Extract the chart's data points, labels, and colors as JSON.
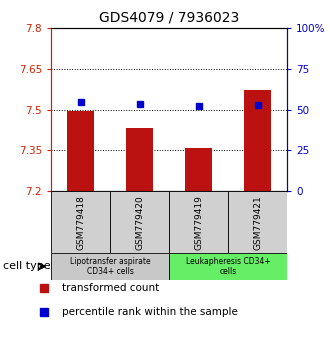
{
  "title": "GDS4079 / 7936023",
  "samples": [
    "GSM779418",
    "GSM779420",
    "GSM779419",
    "GSM779421"
  ],
  "bar_values": [
    7.497,
    7.432,
    7.358,
    7.572
  ],
  "percentile_values": [
    55.0,
    53.5,
    52.0,
    53.0
  ],
  "bar_color": "#bb1111",
  "percentile_color": "#0000cc",
  "left_ylim": [
    7.2,
    7.8
  ],
  "left_yticks": [
    7.2,
    7.35,
    7.5,
    7.65,
    7.8
  ],
  "right_ylim": [
    0,
    100
  ],
  "right_yticks": [
    0,
    25,
    50,
    75,
    100
  ],
  "right_yticklabels": [
    "0",
    "25",
    "50",
    "75",
    "100%"
  ],
  "dotted_lines": [
    7.65,
    7.5,
    7.35
  ],
  "group_labels": [
    "Lipotransfer aspirate\nCD34+ cells",
    "Leukapheresis CD34+\ncells"
  ],
  "group_colors": [
    "#c8c8c8",
    "#66ee66"
  ],
  "group_ranges": [
    [
      0,
      2
    ],
    [
      2,
      4
    ]
  ],
  "cell_type_label": "cell type",
  "legend_items": [
    "transformed count",
    "percentile rank within the sample"
  ],
  "legend_colors": [
    "#bb1111",
    "#0000cc"
  ],
  "left_axis_color": "#cc2200",
  "right_axis_color": "#0000cc"
}
